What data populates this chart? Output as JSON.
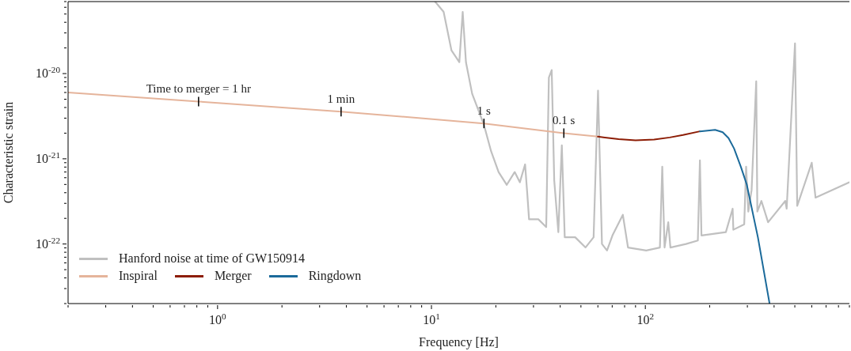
{
  "chart_data": {
    "type": "line",
    "xlabel": "Frequency [Hz]",
    "ylabel": "Characteristic strain",
    "log": "xy",
    "legend": "bottom left",
    "marker": "none",
    "line_style": "solid",
    "xlim": [
      0.2,
      900
    ],
    "ylim": [
      2e-23,
      7e-20
    ],
    "xticks": [
      {
        "value": 0.2,
        "label": null
      },
      {
        "value": 0.3,
        "label": null
      },
      {
        "value": 0.4,
        "label": null
      },
      {
        "value": 0.5,
        "label": null
      },
      {
        "value": 0.6,
        "label": null
      },
      {
        "value": 0.7,
        "label": null
      },
      {
        "value": 0.8,
        "label": null
      },
      {
        "value": 0.9,
        "label": null
      },
      {
        "value": 1,
        "label": "10$^{0}$"
      },
      {
        "value": 2,
        "label": null
      },
      {
        "value": 3,
        "label": null
      },
      {
        "value": 4,
        "label": null
      },
      {
        "value": 5,
        "label": null
      },
      {
        "value": 6,
        "label": null
      },
      {
        "value": 7,
        "label": null
      },
      {
        "value": 8,
        "label": null
      },
      {
        "value": 9,
        "label": null
      },
      {
        "value": 10,
        "label": "10$^{1}$"
      },
      {
        "value": 20,
        "label": null
      },
      {
        "value": 30,
        "label": null
      },
      {
        "value": 40,
        "label": null
      },
      {
        "value": 50,
        "label": null
      },
      {
        "value": 60,
        "label": null
      },
      {
        "value": 70,
        "label": null
      },
      {
        "value": 80,
        "label": null
      },
      {
        "value": 90,
        "label": null
      },
      {
        "value": 100,
        "label": "10$^{2}$"
      },
      {
        "value": 200,
        "label": null
      },
      {
        "value": 300,
        "label": null
      },
      {
        "value": 400,
        "label": null
      },
      {
        "value": 500,
        "label": null
      },
      {
        "value": 600,
        "label": null
      },
      {
        "value": 700,
        "label": null
      },
      {
        "value": 800,
        "label": null
      },
      {
        "value": 900,
        "label": null
      }
    ],
    "yticks": [
      {
        "value": 2e-23,
        "label": null
      },
      {
        "value": 3e-23,
        "label": null
      },
      {
        "value": 4e-23,
        "label": null
      },
      {
        "value": 5e-23,
        "label": null
      },
      {
        "value": 6e-23,
        "label": null
      },
      {
        "value": 7e-23,
        "label": null
      },
      {
        "value": 8e-23,
        "label": null
      },
      {
        "value": 9e-23,
        "label": null
      },
      {
        "value": 1e-22,
        "label": "10$^{-22}$"
      },
      {
        "value": 2e-22,
        "label": null
      },
      {
        "value": 3e-22,
        "label": null
      },
      {
        "value": 4e-22,
        "label": null
      },
      {
        "value": 5e-22,
        "label": null
      },
      {
        "value": 6e-22,
        "label": null
      },
      {
        "value": 7e-22,
        "label": null
      },
      {
        "value": 8e-22,
        "label": null
      },
      {
        "value": 9e-22,
        "label": null
      },
      {
        "value": 1e-21,
        "label": "10$^{-21}$"
      },
      {
        "value": 2e-21,
        "label": null
      },
      {
        "value": 3e-21,
        "label": null
      },
      {
        "value": 4e-21,
        "label": null
      },
      {
        "value": 5e-21,
        "label": null
      },
      {
        "value": 6e-21,
        "label": null
      },
      {
        "value": 7e-21,
        "label": null
      },
      {
        "value": 8e-21,
        "label": null
      },
      {
        "value": 9e-21,
        "label": null
      },
      {
        "value": 1e-20,
        "label": "10$^{-20}$"
      },
      {
        "value": 2e-20,
        "label": null
      },
      {
        "value": 3e-20,
        "label": null
      },
      {
        "value": 4e-20,
        "label": null
      },
      {
        "value": 5e-20,
        "label": null
      },
      {
        "value": 6e-20,
        "label": null
      },
      {
        "value": 7e-20,
        "label": null
      }
    ],
    "series": [
      {
        "name": "Hanford noise at time of GW150914",
        "color": "#c0c0c0",
        "x": [
          10.4,
          11.4,
          12.4,
          13.5,
          14.0,
          14.5,
          15.5,
          17.6,
          19.0,
          20.6,
          22.5,
          24.5,
          25.9,
          27.4,
          28.1,
          28.6,
          31.6,
          34.4,
          35.4,
          36.5,
          37.5,
          39.2,
          40.7,
          42,
          47,
          52.5,
          57.3,
          60.1,
          62.7,
          66.2,
          70.2,
          78.5,
          83,
          101,
          117,
          120,
          123,
          128,
          131,
          155,
          176,
          180,
          183,
          238,
          256,
          258,
          290,
          296,
          303,
          314,
          330,
          334,
          349,
          375,
          451,
          458,
          501,
          513,
          600,
          625,
          900
        ],
        "values": [
          7e-20,
          5.3e-20,
          1.88e-20,
          1.36e-20,
          5.3e-20,
          1.36e-20,
          5.8e-21,
          2.5e-21,
          1.23e-21,
          7e-22,
          4.95e-22,
          7e-22,
          5.3e-22,
          8.6e-22,
          3.7e-22,
          1.95e-22,
          1.95e-22,
          1.58e-22,
          9e-21,
          1.1e-20,
          5.6e-22,
          1.38e-22,
          1.44e-21,
          1.2e-22,
          1.2e-22,
          9.1e-23,
          1.2e-22,
          6.3e-21,
          1e-22,
          8.4e-23,
          1.26e-22,
          2.2e-22,
          9.1e-23,
          8.4e-23,
          9.1e-23,
          8.1e-22,
          9.1e-23,
          1.8e-22,
          9.1e-23,
          1e-22,
          1.1e-22,
          9.6e-22,
          1.26e-22,
          1.38e-22,
          2.6e-22,
          1.47e-22,
          1.7e-22,
          8.1e-22,
          2.4e-22,
          4.3e-22,
          8.1e-21,
          2.4e-22,
          3.2e-22,
          1.8e-22,
          3.2e-22,
          2.6e-22,
          2.26e-20,
          2.8e-22,
          9e-22,
          3.5e-22,
          5.3e-22
        ]
      },
      {
        "name": "Inspiral",
        "color": "#e5b49b",
        "x": [
          0.2,
          0.815,
          3.78,
          17.6,
          41.6,
          60
        ],
        "values": [
          6e-21,
          4.7e-21,
          3.58e-21,
          2.6e-21,
          2e-21,
          1.82e-21
        ]
      },
      {
        "name": "Merger",
        "color": "#8c1c04",
        "x": [
          60,
          75,
          90,
          110,
          130,
          150,
          180
        ],
        "values": [
          1.82e-21,
          1.7e-21,
          1.65e-21,
          1.68e-21,
          1.78e-21,
          1.9e-21,
          2.1e-21
        ]
      },
      {
        "name": "Ringdown",
        "color": "#1b6a9a",
        "x": [
          180,
          212,
          230,
          245,
          260,
          280,
          298,
          336,
          381
        ],
        "values": [
          2.1e-21,
          2.19e-21,
          2.05e-21,
          1.75e-21,
          1.32e-21,
          8e-22,
          5e-22,
          1.2e-22,
          2e-23
        ]
      }
    ],
    "annotations": [
      {
        "text": "Time to merger = 1 hr",
        "x": 0.815,
        "y": 4.7e-21
      },
      {
        "text": "1 min",
        "x": 3.78,
        "y": 3.58e-21
      },
      {
        "text": "1 s",
        "x": 17.6,
        "y": 2.6e-21
      },
      {
        "text": "0.1 s",
        "x": 41.6,
        "y": 2e-21
      }
    ]
  }
}
